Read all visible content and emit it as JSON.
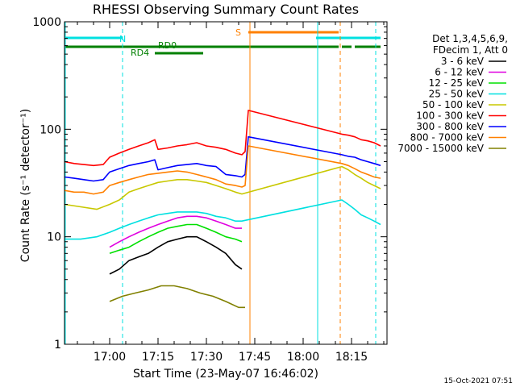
{
  "chart_data": {
    "type": "line",
    "title": "RHESSI Observing Summary Count Rates",
    "xlabel": "Start Time (23-May-07 16:46:02)",
    "ylabel": "Count Rate (s⁻¹ detector⁻¹)",
    "yscale": "log",
    "ylim": [
      1,
      1000
    ],
    "xlim_minutes": [
      0,
      100
    ],
    "x_ticks": [
      "17:00",
      "17:15",
      "17:30",
      "17:45",
      "18:00",
      "18:15"
    ],
    "y_ticks": [
      "1",
      "10",
      "100",
      "1000"
    ],
    "legend_header": [
      "Det 1,3,4,5,6,9,",
      "FDecim 1, Att 0"
    ],
    "legend_placement": "right",
    "footer_date": "15-Oct-2021 07:51",
    "flags": {
      "N_label": "N",
      "S_label": "S",
      "RD0_label": "RD0",
      "RD4_label": "RD4"
    },
    "series": [
      {
        "name": "3 - 6 keV",
        "color": "#000000",
        "x": [
          14,
          17,
          20,
          23,
          26,
          29,
          32,
          35,
          38,
          41,
          44,
          47,
          50,
          53,
          55
        ],
        "y": [
          4.5,
          5,
          6,
          6.5,
          7,
          8,
          9,
          9.5,
          10,
          10,
          9,
          8,
          7,
          5.5,
          5
        ]
      },
      {
        "name": "6 - 12 keV",
        "color": "#e000e0",
        "x": [
          14,
          17,
          20,
          23,
          26,
          29,
          32,
          35,
          38,
          41,
          44,
          47,
          50,
          53,
          55
        ],
        "y": [
          8,
          9,
          10,
          11,
          12,
          13,
          14,
          15,
          15.5,
          15.5,
          15,
          14,
          13,
          12,
          12
        ]
      },
      {
        "name": "12 - 25 keV",
        "color": "#00e000",
        "x": [
          14,
          17,
          20,
          23,
          26,
          29,
          32,
          35,
          38,
          41,
          44,
          47,
          50,
          53,
          55
        ],
        "y": [
          7,
          7.5,
          8,
          9,
          10,
          11,
          12,
          12.5,
          13,
          13,
          12,
          11,
          10,
          9.5,
          9
        ]
      },
      {
        "name": "25 - 50 keV",
        "color": "#00e0e0",
        "x": [
          0,
          5,
          10,
          14,
          17,
          20,
          23,
          26,
          29,
          32,
          35,
          38,
          41,
          44,
          47,
          50,
          53,
          55,
          86,
          88,
          90,
          92,
          94,
          96,
          98
        ],
        "y": [
          9.5,
          9.5,
          10,
          11,
          12,
          13,
          14,
          15,
          16,
          16.5,
          17,
          17,
          17,
          16.5,
          15.5,
          15,
          14,
          14,
          22,
          20,
          18,
          16,
          15,
          14,
          13
        ]
      },
      {
        "name": "50 - 100 keV",
        "color": "#c8c800",
        "x": [
          0,
          5,
          10,
          14,
          17,
          20,
          23,
          26,
          29,
          32,
          35,
          38,
          41,
          44,
          47,
          50,
          53,
          55,
          86,
          88,
          90,
          92,
          94,
          96,
          98
        ],
        "y": [
          20,
          19,
          18,
          20,
          22,
          26,
          28,
          30,
          32,
          33,
          34,
          34,
          33,
          32,
          30,
          28,
          26,
          25,
          45,
          42,
          38,
          35,
          32,
          30,
          28
        ]
      },
      {
        "name": "100 - 300 keV",
        "color": "#ff0000",
        "x": [
          0,
          3,
          6,
          9,
          12,
          14,
          17,
          20,
          23,
          26,
          28,
          29,
          32,
          35,
          38,
          41,
          44,
          47,
          50,
          53,
          55,
          56,
          57,
          86,
          88,
          90,
          92,
          94,
          96,
          98
        ],
        "y": [
          50,
          48,
          47,
          46,
          47,
          55,
          60,
          65,
          70,
          75,
          80,
          65,
          67,
          70,
          72,
          75,
          70,
          68,
          65,
          60,
          58,
          62,
          150,
          90,
          88,
          85,
          80,
          78,
          75,
          70
        ]
      },
      {
        "name": "300 - 800 keV",
        "color": "#0000ff",
        "x": [
          0,
          3,
          6,
          9,
          12,
          14,
          17,
          20,
          23,
          26,
          28,
          29,
          32,
          35,
          38,
          41,
          44,
          47,
          50,
          53,
          55,
          56,
          57,
          86,
          88,
          90,
          92,
          94,
          96,
          98
        ],
        "y": [
          36,
          35,
          34,
          33,
          34,
          40,
          43,
          46,
          48,
          50,
          52,
          42,
          44,
          46,
          47,
          48,
          46,
          45,
          38,
          37,
          36,
          38,
          85,
          58,
          56,
          55,
          52,
          50,
          48,
          46
        ]
      },
      {
        "name": "800 - 7000 keV",
        "color": "#ff8000",
        "x": [
          0,
          3,
          6,
          9,
          12,
          14,
          17,
          20,
          23,
          26,
          29,
          32,
          35,
          38,
          41,
          44,
          47,
          50,
          53,
          55,
          56,
          57,
          86,
          88,
          90,
          92,
          94,
          96,
          98
        ],
        "y": [
          27,
          26,
          26,
          25,
          26,
          30,
          32,
          34,
          36,
          38,
          39,
          40,
          41,
          40,
          38,
          36,
          34,
          31,
          30,
          29,
          30,
          70,
          48,
          46,
          43,
          40,
          38,
          36,
          35
        ]
      },
      {
        "name": "7000 - 15000 keV",
        "color": "#808000",
        "x": [
          14,
          18,
          22,
          26,
          30,
          34,
          38,
          42,
          46,
          50,
          54,
          56
        ],
        "y": [
          2.5,
          2.8,
          3,
          3.2,
          3.5,
          3.5,
          3.3,
          3,
          2.8,
          2.5,
          2.2,
          2.2
        ]
      }
    ]
  }
}
